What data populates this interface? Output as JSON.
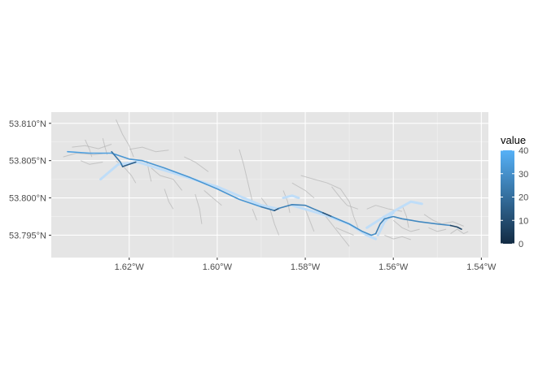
{
  "chart_data": {
    "type": "map",
    "title": "",
    "xlabel": "",
    "ylabel": "",
    "xlim": [
      -1.6377,
      -1.5384
    ],
    "ylim": [
      53.792,
      53.8115
    ],
    "grid": true,
    "x_ticks": [
      {
        "value": -1.62,
        "label": "1.62°W"
      },
      {
        "value": -1.6,
        "label": "1.60°W"
      },
      {
        "value": -1.58,
        "label": "1.58°W"
      },
      {
        "value": -1.56,
        "label": "1.56°W"
      },
      {
        "value": -1.54,
        "label": "1.54°W"
      }
    ],
    "y_ticks": [
      {
        "value": 53.795,
        "label": "53.795°N"
      },
      {
        "value": 53.8,
        "label": "53.800°N"
      },
      {
        "value": 53.805,
        "label": "53.805°N"
      },
      {
        "value": 53.81,
        "label": "53.810°N"
      }
    ],
    "legend": {
      "title": "value",
      "placement": "right",
      "min": 0,
      "max": 40,
      "ticks": [
        {
          "value": 0,
          "label": "0"
        },
        {
          "value": 10,
          "label": "10"
        },
        {
          "value": 20,
          "label": "20"
        },
        {
          "value": 30,
          "label": "30"
        },
        {
          "value": 40,
          "label": "40"
        }
      ],
      "color_low": "#132B43",
      "color_high": "#56B1F7"
    },
    "colors": {
      "panel_background": "#E5E5E5",
      "grid_major": "#FFFFFF",
      "grid_minor": "#F2F2F2",
      "background_roads": "#B8B8B8",
      "highlight_lines": "#BFDDF8"
    },
    "highlight_lines": [
      [
        [
          -1.6265,
          53.8025
        ],
        [
          -1.6225,
          53.8045
        ],
        [
          -1.618,
          53.8048
        ],
        [
          -1.6,
          53.8015
        ],
        [
          -1.59,
          53.799
        ],
        [
          -1.586,
          53.7985
        ]
      ],
      [
        [
          -1.583,
          53.799
        ],
        [
          -1.576,
          53.7978
        ],
        [
          -1.57,
          53.7965
        ],
        [
          -1.566,
          53.795
        ],
        [
          -1.564,
          53.7945
        ]
      ],
      [
        [
          -1.566,
          53.796
        ],
        [
          -1.562,
          53.7975
        ],
        [
          -1.559,
          53.7985
        ],
        [
          -1.556,
          53.7995
        ],
        [
          -1.5535,
          53.7992
        ]
      ],
      [
        [
          -1.5635,
          53.795
        ],
        [
          -1.562,
          53.7968
        ],
        [
          -1.56,
          53.798
        ]
      ],
      [
        [
          -1.585,
          53.8
        ],
        [
          -1.583,
          53.8003
        ],
        [
          -1.5815,
          53.8
        ]
      ]
    ],
    "background_roads": [
      [
        [
          -1.635,
          53.8055
        ],
        [
          -1.632,
          53.806
        ],
        [
          -1.628,
          53.8058
        ],
        [
          -1.625,
          53.806
        ]
      ],
      [
        [
          -1.633,
          53.8068
        ],
        [
          -1.63,
          53.807
        ],
        [
          -1.627,
          53.8066
        ],
        [
          -1.624,
          53.8072
        ]
      ],
      [
        [
          -1.631,
          53.805
        ],
        [
          -1.629,
          53.8045
        ],
        [
          -1.626,
          53.8048
        ]
      ],
      [
        [
          -1.63,
          53.8078
        ],
        [
          -1.629,
          53.8065
        ],
        [
          -1.6285,
          53.8055
        ]
      ],
      [
        [
          -1.626,
          53.808
        ],
        [
          -1.6255,
          53.8068
        ],
        [
          -1.625,
          53.8058
        ]
      ],
      [
        [
          -1.623,
          53.8105
        ],
        [
          -1.6215,
          53.8085
        ],
        [
          -1.62,
          53.807
        ],
        [
          -1.619,
          53.8055
        ]
      ],
      [
        [
          -1.62,
          53.8065
        ],
        [
          -1.617,
          53.8068
        ],
        [
          -1.614,
          53.8062
        ],
        [
          -1.611,
          53.8064
        ]
      ],
      [
        [
          -1.615,
          53.804
        ],
        [
          -1.613,
          53.803
        ],
        [
          -1.61,
          53.8025
        ],
        [
          -1.608,
          53.801
        ]
      ],
      [
        [
          -1.612,
          53.8012
        ],
        [
          -1.611,
          53.7995
        ],
        [
          -1.61,
          53.7985
        ]
      ],
      [
        [
          -1.605,
          53.8005
        ],
        [
          -1.604,
          53.7985
        ],
        [
          -1.6035,
          53.7965
        ]
      ],
      [
        [
          -1.6075,
          53.8055
        ],
        [
          -1.605,
          53.8048
        ],
        [
          -1.602,
          53.8035
        ]
      ],
      [
        [
          -1.595,
          53.8065
        ],
        [
          -1.594,
          53.8045
        ],
        [
          -1.593,
          53.802
        ],
        [
          -1.592,
          53.7995
        ]
      ],
      [
        [
          -1.59,
          53.8
        ],
        [
          -1.588,
          53.7985
        ],
        [
          -1.587,
          53.7965
        ],
        [
          -1.586,
          53.795
        ]
      ],
      [
        [
          -1.592,
          53.7985
        ],
        [
          -1.591,
          53.797
        ]
      ],
      [
        [
          -1.581,
          53.803
        ],
        [
          -1.578,
          53.8025
        ],
        [
          -1.575,
          53.802
        ],
        [
          -1.572,
          53.8012
        ],
        [
          -1.57,
          53.7995
        ]
      ],
      [
        [
          -1.583,
          53.802
        ],
        [
          -1.58,
          53.801
        ],
        [
          -1.578,
          53.8
        ]
      ],
      [
        [
          -1.58,
          53.7985
        ],
        [
          -1.579,
          53.797
        ],
        [
          -1.578,
          53.7955
        ]
      ],
      [
        [
          -1.576,
          53.798
        ],
        [
          -1.574,
          53.7965
        ],
        [
          -1.572,
          53.795
        ],
        [
          -1.57,
          53.7935
        ]
      ],
      [
        [
          -1.574,
          53.8015
        ],
        [
          -1.572,
          53.8
        ],
        [
          -1.5705,
          53.799
        ],
        [
          -1.568,
          53.7985
        ]
      ],
      [
        [
          -1.57,
          53.7995
        ],
        [
          -1.569,
          53.7975
        ],
        [
          -1.568,
          53.796
        ]
      ],
      [
        [
          -1.566,
          53.7985
        ],
        [
          -1.564,
          53.799
        ],
        [
          -1.561,
          53.7985
        ],
        [
          -1.558,
          53.7982
        ]
      ],
      [
        [
          -1.56,
          53.797
        ],
        [
          -1.558,
          53.796
        ],
        [
          -1.556,
          53.7955
        ],
        [
          -1.554,
          53.7958
        ]
      ],
      [
        [
          -1.558,
          53.799
        ],
        [
          -1.557,
          53.7975
        ],
        [
          -1.5565,
          53.796
        ]
      ],
      [
        [
          -1.553,
          53.7978
        ],
        [
          -1.551,
          53.797
        ],
        [
          -1.549,
          53.7965
        ],
        [
          -1.5465,
          53.7968
        ],
        [
          -1.544,
          53.7962
        ]
      ],
      [
        [
          -1.552,
          53.796
        ],
        [
          -1.55,
          53.7955
        ],
        [
          -1.548,
          53.7958
        ]
      ],
      [
        [
          -1.547,
          53.7952
        ],
        [
          -1.5455,
          53.7958
        ],
        [
          -1.544,
          53.7952
        ],
        [
          -1.543,
          53.7955
        ]
      ],
      [
        [
          -1.562,
          53.795
        ],
        [
          -1.56,
          53.7945
        ],
        [
          -1.558,
          53.7948
        ],
        [
          -1.556,
          53.7944
        ]
      ],
      [
        [
          -1.573,
          53.796
        ],
        [
          -1.571,
          53.7955
        ],
        [
          -1.569,
          53.795
        ]
      ],
      [
        [
          -1.623,
          53.805
        ],
        [
          -1.621,
          53.804
        ],
        [
          -1.6195,
          53.803
        ],
        [
          -1.6185,
          53.802
        ]
      ],
      [
        [
          -1.616,
          53.805
        ],
        [
          -1.6155,
          53.8035
        ],
        [
          -1.615,
          53.8022
        ]
      ],
      [
        [
          -1.603,
          53.801
        ],
        [
          -1.601,
          53.8
        ],
        [
          -1.599,
          53.799
        ]
      ],
      [
        [
          -1.585,
          53.801
        ],
        [
          -1.584,
          53.7995
        ],
        [
          -1.5835,
          53.798
        ]
      ]
    ],
    "series": [
      {
        "value": 35,
        "points": [
          [
            -1.634,
            53.8062
          ],
          [
            -1.629,
            53.806
          ],
          [
            -1.624,
            53.806
          ],
          [
            -1.623,
            53.8058
          ]
        ]
      },
      {
        "value": 22,
        "points": [
          [
            -1.624,
            53.8062
          ],
          [
            -1.623,
            53.8055
          ],
          [
            -1.622,
            53.8048
          ],
          [
            -1.6215,
            53.8042
          ]
        ]
      },
      {
        "value": 15,
        "points": [
          [
            -1.6215,
            53.8042
          ],
          [
            -1.62,
            53.8045
          ],
          [
            -1.6185,
            53.8048
          ]
        ]
      },
      {
        "value": 32,
        "points": [
          [
            -1.623,
            53.8058
          ],
          [
            -1.62,
            53.8052
          ],
          [
            -1.617,
            53.805
          ],
          [
            -1.612,
            53.804
          ],
          [
            -1.606,
            53.8027
          ],
          [
            -1.6,
            53.8012
          ],
          [
            -1.595,
            53.7998
          ],
          [
            -1.59,
            53.7988
          ]
        ]
      },
      {
        "value": 24,
        "points": [
          [
            -1.59,
            53.7988
          ],
          [
            -1.587,
            53.7983
          ]
        ]
      },
      {
        "value": 12,
        "points": [
          [
            -1.587,
            53.7983
          ],
          [
            -1.586,
            53.7986
          ]
        ]
      },
      {
        "value": 26,
        "points": [
          [
            -1.586,
            53.7986
          ],
          [
            -1.583,
            53.7991
          ],
          [
            -1.58,
            53.799
          ],
          [
            -1.578,
            53.7985
          ],
          [
            -1.576,
            53.798
          ]
        ]
      },
      {
        "value": 12,
        "points": [
          [
            -1.576,
            53.798
          ],
          [
            -1.574,
            53.7975
          ]
        ]
      },
      {
        "value": 30,
        "points": [
          [
            -1.574,
            53.7975
          ],
          [
            -1.57,
            53.7965
          ],
          [
            -1.567,
            53.7955
          ],
          [
            -1.565,
            53.795
          ],
          [
            -1.564,
            53.7952
          ]
        ]
      },
      {
        "value": 25,
        "points": [
          [
            -1.564,
            53.7952
          ],
          [
            -1.563,
            53.7965
          ],
          [
            -1.562,
            53.7972
          ]
        ]
      },
      {
        "value": 28,
        "points": [
          [
            -1.562,
            53.7972
          ],
          [
            -1.56,
            53.7975
          ],
          [
            -1.558,
            53.7972
          ],
          [
            -1.556,
            53.797
          ],
          [
            -1.554,
            53.7968
          ],
          [
            -1.55,
            53.7965
          ],
          [
            -1.547,
            53.7963
          ]
        ]
      },
      {
        "value": 8,
        "points": [
          [
            -1.547,
            53.7963
          ],
          [
            -1.5455,
            53.7961
          ],
          [
            -1.5445,
            53.7958
          ]
        ]
      }
    ]
  }
}
